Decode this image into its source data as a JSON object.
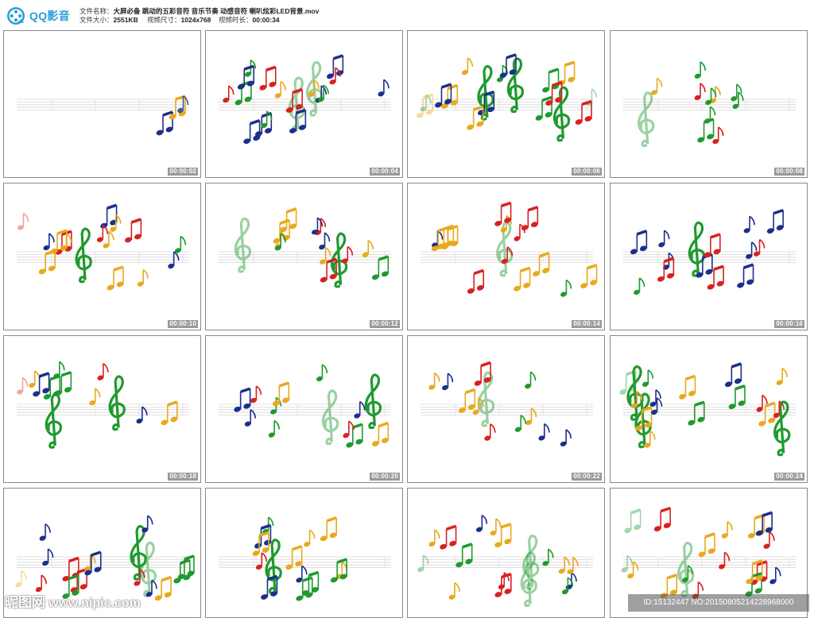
{
  "app": {
    "name": "QQ影音",
    "logo_icon": "film-reel-icon",
    "brand_color": "#2a9bd8"
  },
  "meta": {
    "filename_label": "文件名称：",
    "filename": "大屏必备 跳动的五彩音符 音乐节奏 动感音符 喇叭炫彩LED背景.mov",
    "filesize_label": "文件大小：",
    "filesize": "2551KB",
    "dimensions_label": "视频尺寸：",
    "dimensions": "1024x768",
    "duration_label": "视频时长：",
    "duration": "00:00:34"
  },
  "thumbnails": [
    {
      "timestamp": "00:00:02"
    },
    {
      "timestamp": "00:00:04"
    },
    {
      "timestamp": "00:00:06"
    },
    {
      "timestamp": "00:00:08"
    },
    {
      "timestamp": "00:00:10"
    },
    {
      "timestamp": "00:00:12"
    },
    {
      "timestamp": "00:00:14"
    },
    {
      "timestamp": "00:00:16"
    },
    {
      "timestamp": "00:00:18"
    },
    {
      "timestamp": "00:00:20"
    },
    {
      "timestamp": "00:00:22"
    },
    {
      "timestamp": "00:00:24"
    },
    {
      "timestamp": "",
      "partial": true
    },
    {
      "timestamp": "",
      "partial": true
    },
    {
      "timestamp": "",
      "partial": true
    },
    {
      "timestamp": "",
      "partial": true
    }
  ],
  "note_colors": [
    "#e8a91c",
    "#1d2f8a",
    "#d92020",
    "#1f9a2e"
  ],
  "watermark": {
    "site": "昵图网",
    "url": "www.nipic.com"
  },
  "image_id": "ID:15132447 NO:20150805214228968000"
}
